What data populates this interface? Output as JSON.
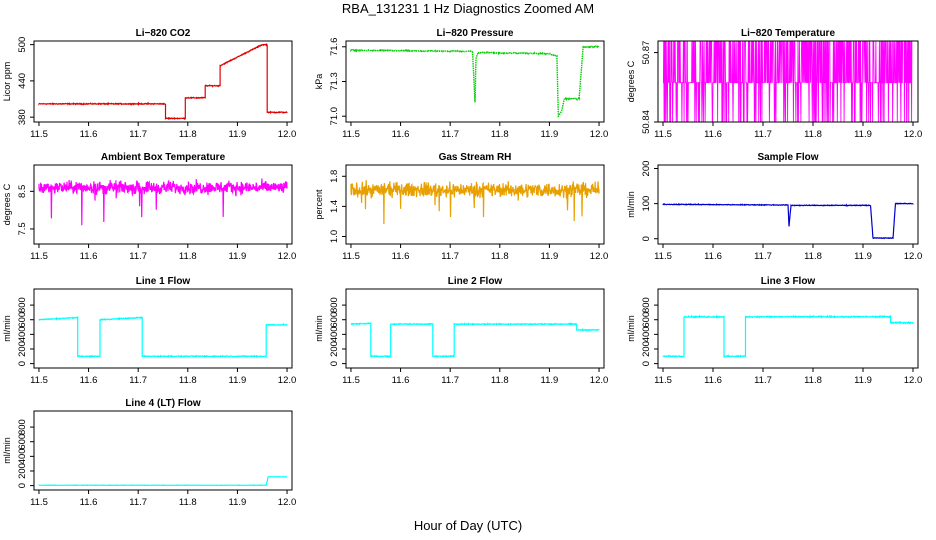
{
  "main_title": "RBA_131231  1 Hz Diagnostics Zoomed AM",
  "x_caption": "Hour of Day (UTC)",
  "chart_data": [
    {
      "type": "line",
      "title": "Li−820 CO2",
      "ylabel": "Licor ppm",
      "color": "#e00000",
      "xlim": [
        11.49,
        12.01
      ],
      "ylim": [
        372,
        506
      ],
      "x_ticks": [
        "11.5",
        "11.6",
        "11.7",
        "11.8",
        "11.9",
        "12.0"
      ],
      "y_ticks": [
        "380",
        "440",
        "500"
      ],
      "style": "steps",
      "noise": 1.2,
      "x": [
        11.5,
        11.72,
        11.755,
        11.755,
        11.795,
        11.795,
        11.835,
        11.835,
        11.865,
        11.865,
        11.95,
        11.96,
        11.96,
        12.0
      ],
      "y": [
        402,
        402,
        402,
        378,
        378,
        412,
        412,
        432,
        432,
        465,
        500,
        500,
        388,
        388
      ]
    },
    {
      "type": "line",
      "title": "Li−820 Pressure",
      "ylabel": "kPa",
      "color": "#00cc00",
      "xlim": [
        11.49,
        12.01
      ],
      "ylim": [
        70.95,
        71.65
      ],
      "x_ticks": [
        "11.5",
        "11.6",
        "11.7",
        "11.8",
        "11.9",
        "12.0"
      ],
      "y_ticks": [
        "71.0",
        "71.3",
        "71.6"
      ],
      "style": "points",
      "noise": 0.006,
      "x": [
        11.5,
        11.745,
        11.75,
        11.752,
        11.756,
        11.9,
        11.915,
        11.918,
        11.925,
        11.93,
        11.955,
        11.96,
        11.968,
        12.0
      ],
      "y": [
        71.57,
        71.56,
        71.12,
        71.5,
        71.55,
        71.54,
        71.52,
        71.0,
        71.05,
        71.15,
        71.15,
        71.16,
        71.6,
        71.6
      ]
    },
    {
      "type": "line",
      "title": "Li−820 Temperature",
      "ylabel": "degrees C",
      "color": "#ff00ff",
      "xlim": [
        11.49,
        12.01
      ],
      "ylim": [
        50.84,
        50.875
      ],
      "x_ticks": [
        "11.5",
        "11.6",
        "11.7",
        "11.8",
        "11.9",
        "12.0"
      ],
      "y_ticks": [
        "50.84",
        "50.87"
      ],
      "style": "quantized",
      "levels": [
        50.84,
        50.857,
        50.875
      ],
      "x": [
        11.5,
        12.0
      ],
      "y": [
        50.857,
        50.857
      ]
    },
    {
      "type": "line",
      "title": "Ambient Box Temperature",
      "ylabel": "degrees C",
      "color": "#ff00ff",
      "xlim": [
        11.49,
        12.01
      ],
      "ylim": [
        7.1,
        9.2
      ],
      "x_ticks": [
        "11.5",
        "11.6",
        "11.7",
        "11.8",
        "11.9",
        "12.0"
      ],
      "y_ticks": [
        "7.5",
        "8.5"
      ],
      "style": "noisy",
      "noise": 0.25,
      "spikes_down": 0.9,
      "x": [
        11.5,
        12.0
      ],
      "y": [
        8.6,
        8.6
      ]
    },
    {
      "type": "line",
      "title": "Gas Stream RH",
      "ylabel": "percent",
      "color": "#e8a000",
      "xlim": [
        11.49,
        12.01
      ],
      "ylim": [
        0.9,
        1.95
      ],
      "x_ticks": [
        "11.5",
        "11.6",
        "11.7",
        "11.8",
        "11.9",
        "12.0"
      ],
      "y_ticks": [
        "1.0",
        "1.4",
        "1.8"
      ],
      "style": "noisy",
      "noise": 0.14,
      "spikes_down": 0.45,
      "x": [
        11.5,
        12.0
      ],
      "y": [
        1.62,
        1.62
      ]
    },
    {
      "type": "line",
      "title": "Sample Flow",
      "ylabel": "ml/min",
      "color": "#0000cc",
      "xlim": [
        11.49,
        12.01
      ],
      "ylim": [
        -15,
        210
      ],
      "x_ticks": [
        "11.5",
        "11.6",
        "11.7",
        "11.8",
        "11.9",
        "12.0"
      ],
      "y_ticks": [
        "0",
        "100",
        "200"
      ],
      "style": "steps",
      "noise": 1.5,
      "x": [
        11.5,
        11.75,
        11.752,
        11.756,
        11.915,
        11.92,
        11.96,
        11.965,
        12.0
      ],
      "y": [
        98,
        96,
        35,
        95,
        95,
        2,
        2,
        100,
        100
      ]
    },
    {
      "type": "line",
      "title": "Line 1 Flow",
      "ylabel": "ml/min",
      "color": "#00ffff",
      "xlim": [
        11.49,
        12.01
      ],
      "ylim": [
        -60,
        1020
      ],
      "x_ticks": [
        "11.5",
        "11.6",
        "11.7",
        "11.8",
        "11.9",
        "12.0"
      ],
      "y_ticks": [
        "0",
        "200",
        "400",
        "600",
        "800"
      ],
      "style": "steps",
      "noise": 10,
      "x": [
        11.5,
        11.578,
        11.578,
        11.623,
        11.623,
        11.708,
        11.708,
        11.958,
        11.958,
        12.0
      ],
      "y": [
        600,
        630,
        100,
        100,
        600,
        630,
        100,
        100,
        530,
        530
      ]
    },
    {
      "type": "line",
      "title": "Line 2 Flow",
      "ylabel": "ml/min",
      "color": "#00ffff",
      "xlim": [
        11.49,
        12.01
      ],
      "ylim": [
        -60,
        1020
      ],
      "x_ticks": [
        "11.5",
        "11.6",
        "11.7",
        "11.8",
        "11.9",
        "12.0"
      ],
      "y_ticks": [
        "0",
        "200",
        "400",
        "600",
        "800"
      ],
      "style": "steps",
      "noise": 10,
      "x": [
        11.5,
        11.54,
        11.54,
        11.58,
        11.58,
        11.665,
        11.665,
        11.708,
        11.708,
        11.955,
        11.955,
        12.0
      ],
      "y": [
        540,
        550,
        100,
        100,
        540,
        540,
        100,
        100,
        540,
        540,
        460,
        460
      ]
    },
    {
      "type": "line",
      "title": "Line 3 Flow",
      "ylabel": "ml/min",
      "color": "#00ffff",
      "xlim": [
        11.49,
        12.01
      ],
      "ylim": [
        -60,
        1020
      ],
      "x_ticks": [
        "11.5",
        "11.6",
        "11.7",
        "11.8",
        "11.9",
        "12.0"
      ],
      "y_ticks": [
        "0",
        "200",
        "400",
        "600",
        "800"
      ],
      "style": "steps",
      "noise": 12,
      "x": [
        11.5,
        11.542,
        11.542,
        11.622,
        11.622,
        11.665,
        11.665,
        11.955,
        11.955,
        12.0
      ],
      "y": [
        100,
        100,
        640,
        640,
        100,
        100,
        640,
        640,
        560,
        560
      ]
    },
    {
      "type": "line",
      "title": "Line 4 (LT) Flow",
      "ylabel": "ml/min",
      "color": "#00ffff",
      "xlim": [
        11.49,
        12.01
      ],
      "ylim": [
        -60,
        1020
      ],
      "x_ticks": [
        "11.5",
        "11.6",
        "11.7",
        "11.8",
        "11.9",
        "12.0"
      ],
      "y_ticks": [
        "0",
        "200",
        "400",
        "600",
        "800"
      ],
      "style": "steps",
      "noise": 3,
      "x": [
        11.5,
        11.958,
        11.962,
        12.0
      ],
      "y": [
        5,
        5,
        120,
        120
      ]
    }
  ]
}
